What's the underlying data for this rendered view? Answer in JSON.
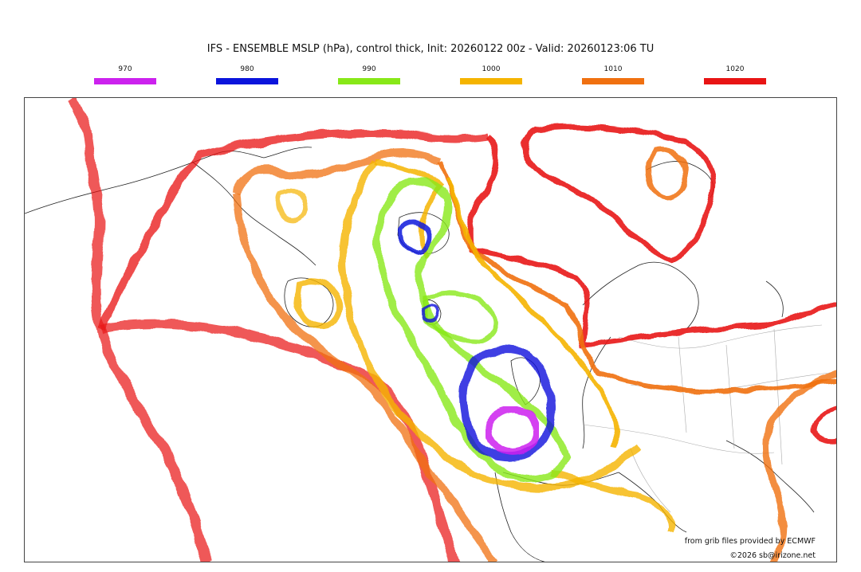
{
  "title": "IFS - ENSEMBLE MSLP (hPa), control thick, Init: 20260122 00z - Valid: 20260123:06 TU",
  "legend": [
    {
      "label": "970",
      "color": "#cc22ee"
    },
    {
      "label": "980",
      "color": "#0a14dc"
    },
    {
      "label": "990",
      "color": "#88e818"
    },
    {
      "label": "1000",
      "color": "#f5b400"
    },
    {
      "label": "1010",
      "color": "#f07010"
    },
    {
      "label": "1020",
      "color": "#e81414"
    }
  ],
  "credit_source": "from grib files provided by ECMWF",
  "credit_copyright": "©2026 sb@irizone.net"
}
